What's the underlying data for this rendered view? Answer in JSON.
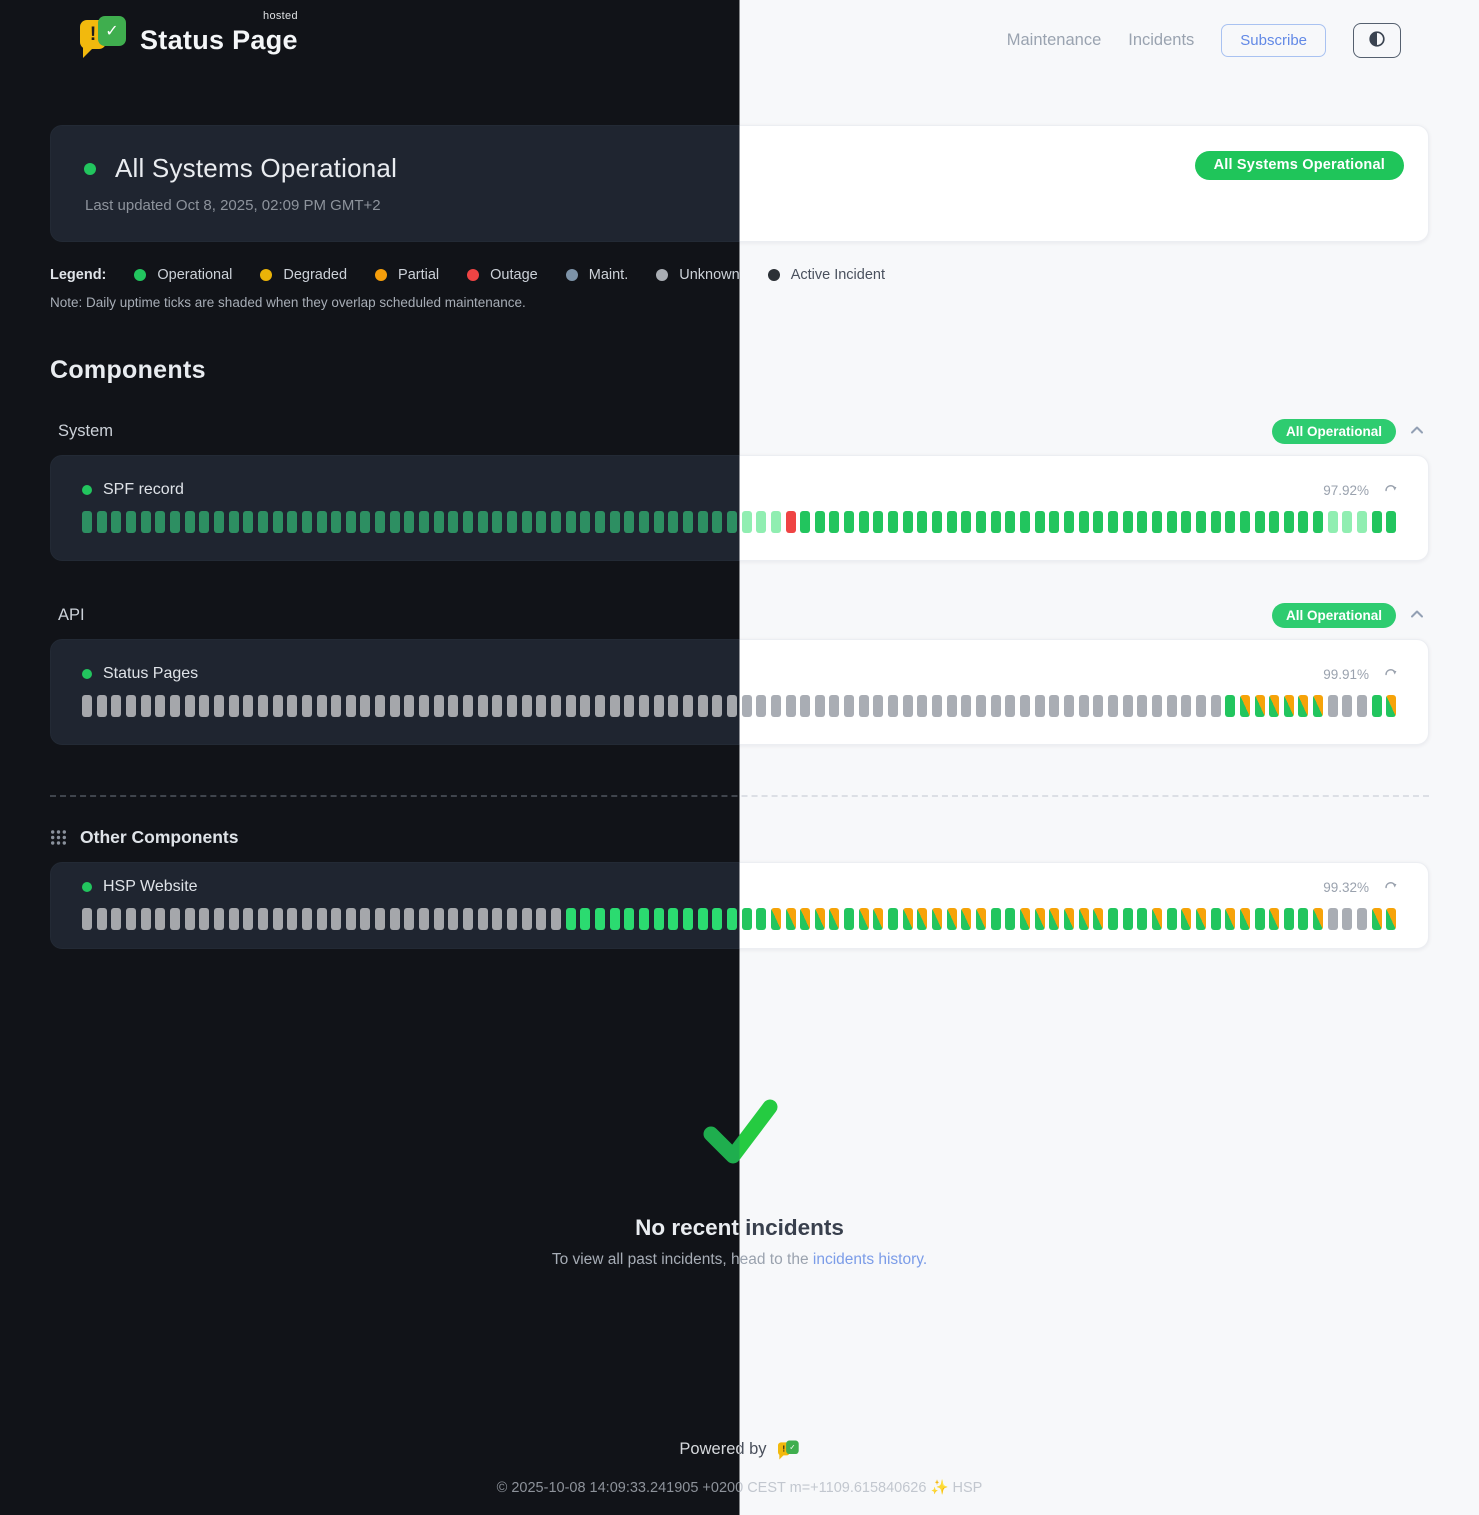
{
  "header": {
    "logo": {
      "title": "Status Page",
      "superscript": "hosted",
      "icon_exclaim": "!",
      "icon_check": "✓"
    },
    "nav": {
      "maintenance": "Maintenance",
      "incidents": "Incidents",
      "subscribe": "Subscribe"
    }
  },
  "overall_status": {
    "title": "All Systems Operational",
    "last_updated": "Last updated Oct 8, 2025, 02:09 PM GMT+2",
    "badge": "All Systems Operational",
    "badge_color": "#1fc55a"
  },
  "legend": {
    "label": "Legend:",
    "items": [
      {
        "label": "Operational",
        "color": "#22c55e"
      },
      {
        "label": "Degraded",
        "color": "#eab308"
      },
      {
        "label": "Partial",
        "color": "#f59e0b"
      },
      {
        "label": "Outage",
        "color": "#ef4444"
      },
      {
        "label": "Maint.",
        "color": "#7d93a8"
      },
      {
        "label": "Unknown",
        "color": "#a9adb3"
      },
      {
        "label": "Active Incident",
        "color": "#2c3136"
      }
    ],
    "note": "Note: Daily uptime ticks are shaded when they overlap scheduled maintenance."
  },
  "components": {
    "heading": "Components",
    "tick_legend": {
      "G": "operational",
      "B": "operational-bright",
      "F": "operational-shaded-maintenance",
      "R": "outage",
      "U": "unknown",
      "P": "partial-over-operational"
    },
    "sections": [
      {
        "name": "System",
        "badge": "All Operational",
        "components": [
          {
            "name": "SPF record",
            "uptime": "97.92%",
            "ticks": "GGGGGGGGGGGGGGGGGGGGGGGGGGGGGGGGGGGGGGGGGGGGGFFFRGGGGGGGGGGGGGGGGGGGGGGGGGGGGGGGGGGGGFFFGG"
          }
        ]
      },
      {
        "name": "API",
        "badge": "All Operational",
        "components": [
          {
            "name": "Status Pages",
            "uptime": "99.91%",
            "ticks": "UUUUUUUUUUUUUUUUUUUUUUUUUUUUUUUUUUUUUUUUUUUUUUUUUUUUUUUUUUUUUUUUUUUUUUUUUUUUUUGPPPPPPUUUGP"
          }
        ]
      },
      {
        "name": "Other Components",
        "badge": "",
        "components": [
          {
            "name": "HSP Website",
            "uptime": "99.32%",
            "ticks": "UUUUUUUUUUUUUUUUUUUUUUUUUUUUUUUUUBBBBBBBBBBBBBBPPPPPBPPBPPPPPPBBPPPPPPBBBPBPPBPPBPBBPUUUPP"
          }
        ]
      }
    ]
  },
  "incidents": {
    "title": "No recent incidents",
    "message_prefix": "To view all past incidents, head to the ",
    "link_text": "incidents history."
  },
  "footer": {
    "powered_by": "Powered by",
    "copyright": "© 2025-10-08 14:09:33.241905 +0200 CEST m=+1109.615840626 ✨ HSP"
  },
  "theme": {
    "split": "left half dark theme, right half light theme",
    "accent_green": "#22c55e",
    "outage_red": "#ef4444",
    "partial_orange": "#f6a309",
    "link_blue": "#7b9ce8"
  }
}
